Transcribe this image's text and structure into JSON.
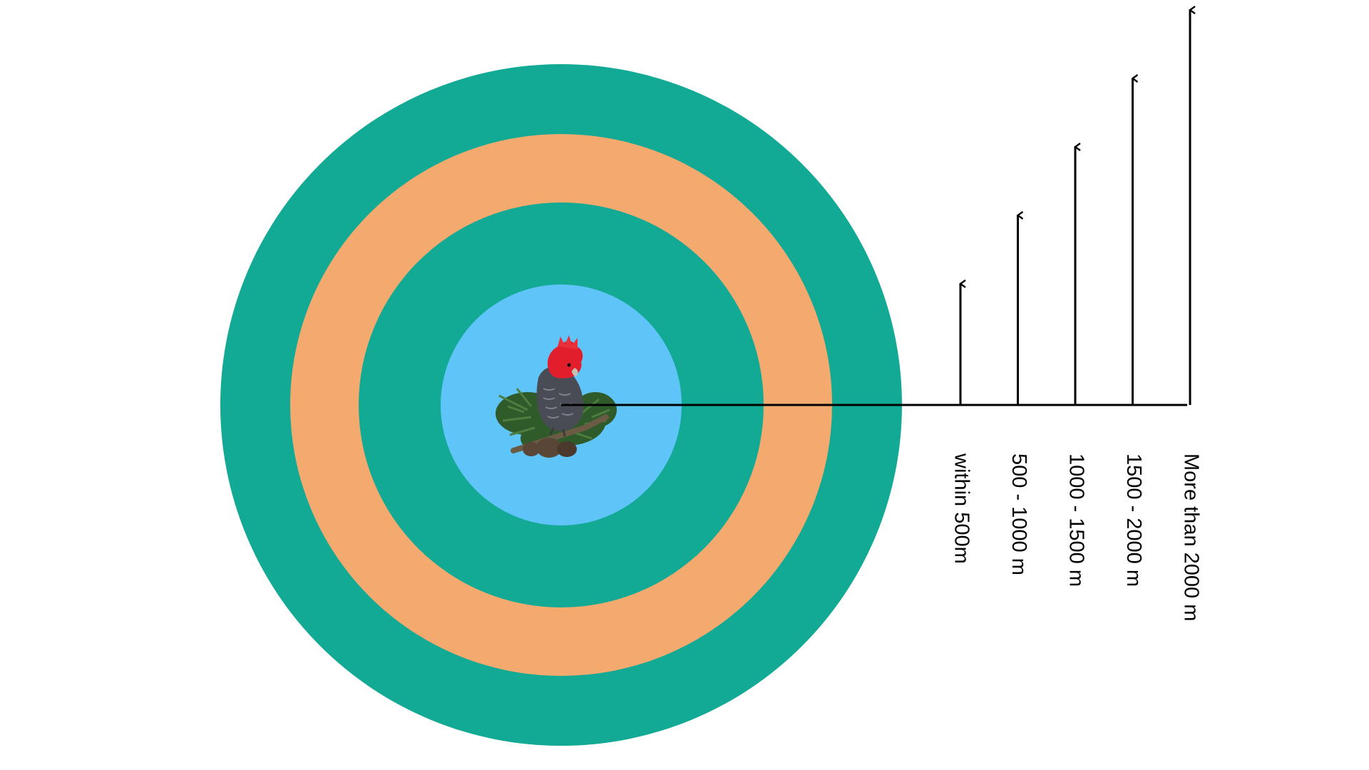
{
  "diagram": {
    "center_image": "gang-gang-cockatoo-on-branch",
    "rings_inner_to_outer": [
      {
        "color": "#5FC4F8"
      },
      {
        "color": "#12A995"
      },
      {
        "color": "#F4AA6E"
      },
      {
        "color": "#12A995"
      }
    ],
    "line_color": "#000000",
    "distance_markers": [
      {
        "label": "within 500m",
        "level": 1
      },
      {
        "label": "500 - 1000 m",
        "level": 2
      },
      {
        "label": "1000 - 1500 m",
        "level": 3
      },
      {
        "label": "1500 - 2000 m",
        "level": 4
      },
      {
        "label": "More than  2000 m",
        "level": 5
      }
    ]
  }
}
